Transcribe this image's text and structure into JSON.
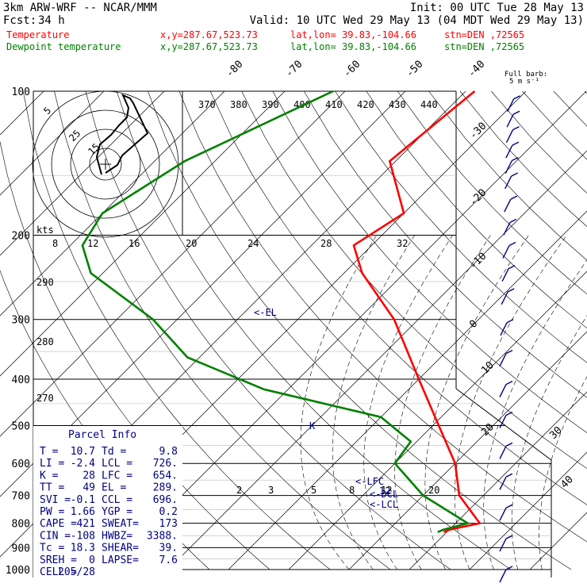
{
  "header": {
    "model": "3km ARW-WRF -- NCAR/MMM",
    "init": "Init: 00 UTC Tue 28 May 13",
    "fcst_label": "Fcst:",
    "fcst_value": "34 h",
    "valid": "Valid: 10 UTC Wed 29 May 13 (04 MDT Wed 29 May 13)",
    "temp_line": {
      "label": "Temperature",
      "xy": "x,y=287.67,523.73",
      "latlon": "lat,lon= 39.83,-104.66",
      "stn": "stn=DEN ,72565"
    },
    "dew_line": {
      "label": "Dewpoint temperature",
      "xy": "x,y=287.67,523.73",
      "latlon": "lat,lon= 39.83,-104.66",
      "stn": "stn=DEN ,72565"
    }
  },
  "barb_title": "Full barb:",
  "barb_units": "5 m s⁻¹",
  "parcel_info": {
    "title": "Parcel Info",
    "rows": [
      [
        "T  =",
        "10.7",
        "Td =",
        "9.8"
      ],
      [
        "LI =",
        "-2.4",
        "LCL =",
        "726."
      ],
      [
        "K  =",
        "28",
        "LFC =",
        "654."
      ],
      [
        "TT =",
        "49",
        "EL =",
        "289."
      ],
      [
        "SVI =",
        "-0.1",
        "CCL =",
        "696."
      ],
      [
        "PW =",
        "1.66",
        "YGP =",
        "0.2"
      ],
      [
        "CAPE =",
        "421",
        "SWEAT=",
        "173"
      ],
      [
        "CIN =",
        "-108",
        "HWBZ=",
        "3388."
      ],
      [
        "Tc =",
        "18.3",
        "SHEAR=",
        "39."
      ],
      [
        "SREH =",
        "0",
        "LAPSE=",
        "7.6"
      ],
      [
        "CELL =",
        "205/28",
        "",
        ""
      ]
    ]
  },
  "hodograph": {
    "units_label": "kts",
    "ring_labels": [
      "5",
      "25",
      "15"
    ]
  },
  "chart_data": {
    "type": "line",
    "title": "",
    "ylabel": "",
    "y_scale": "log-pressure (hPa)",
    "pressure_levels": [
      100,
      200,
      300,
      400,
      500,
      600,
      700,
      800,
      900,
      1000
    ],
    "pressure_labels": [
      "100",
      "200",
      "300",
      "400",
      "500",
      "600",
      "700",
      "800",
      "900",
      "1000"
    ],
    "isotherm_labels": [
      "-80",
      "-70",
      "-60",
      "-50",
      "-40",
      "-30",
      "-20",
      "-10",
      "0",
      "10",
      "20",
      "30",
      "40"
    ],
    "theta_e_labels": [
      "370",
      "380",
      "390",
      "400",
      "410",
      "420",
      "430",
      "440"
    ],
    "theta_labels": [
      "290",
      "280",
      "270"
    ],
    "mixing_ratio_labels": [
      "2",
      "3",
      "5",
      "8",
      "12",
      "20"
    ],
    "row_labels_200": [
      "8",
      "12",
      "16",
      "20",
      "24",
      "28",
      "32"
    ],
    "annotations": [
      "<-EL",
      "K",
      "<-LFC",
      "<-DCL",
      "<-LCL",
      "12"
    ],
    "series": [
      {
        "name": "Temperature",
        "color": "#ff0000",
        "points": [
          [
            100,
            -58.5
          ],
          [
            140,
            -61
          ],
          [
            180,
            -50
          ],
          [
            210,
            -53
          ],
          [
            240,
            -47
          ],
          [
            300,
            -34
          ],
          [
            400,
            -20
          ],
          [
            500,
            -9
          ],
          [
            600,
            0
          ],
          [
            700,
            6
          ],
          [
            800,
            14
          ],
          [
            826,
            10
          ],
          [
            835,
            9.5
          ]
        ]
      },
      {
        "name": "Dewpoint temperature",
        "color": "#008000",
        "points": [
          [
            100,
            -82
          ],
          [
            140,
            -95
          ],
          [
            180,
            -100
          ],
          [
            210,
            -98
          ],
          [
            240,
            -92
          ],
          [
            300,
            -74
          ],
          [
            360,
            -62
          ],
          [
            420,
            -44
          ],
          [
            480,
            -20
          ],
          [
            540,
            -11
          ],
          [
            600,
            -10
          ],
          [
            700,
            0
          ],
          [
            800,
            12
          ],
          [
            826,
            9
          ],
          [
            835,
            8.5
          ]
        ]
      }
    ],
    "wind_profile_label": "wind barbs",
    "grid": true
  },
  "colors": {
    "temperature": "#ff0000",
    "dewpoint": "#008000",
    "barbs": "#000080",
    "info": "#000080",
    "text": "#000000"
  }
}
